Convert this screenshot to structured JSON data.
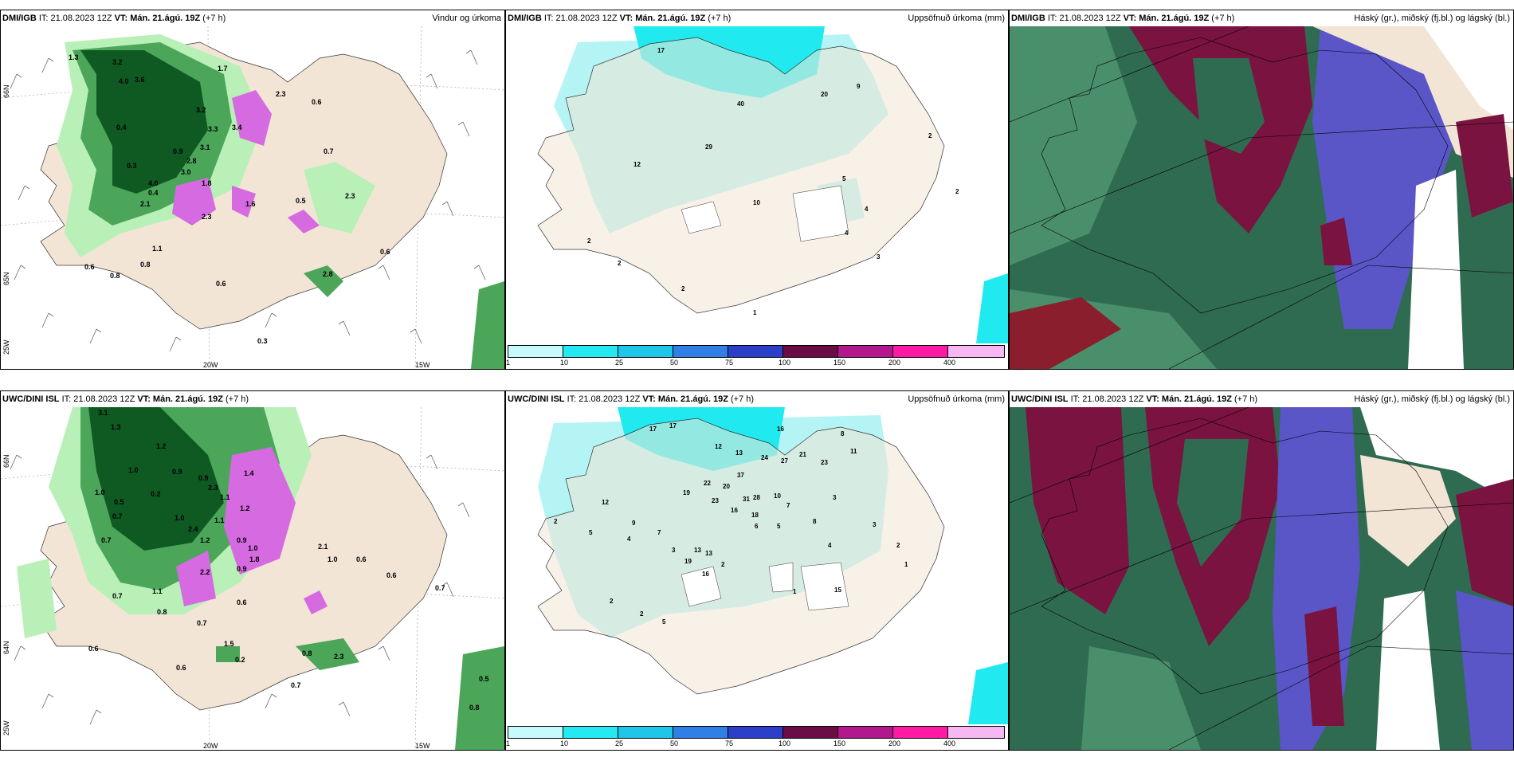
{
  "colors": {
    "land": "#f3e5d6",
    "sea": "#ffffff",
    "precip_light": "#b9f0b7",
    "precip_mid": "#4ca65a",
    "precip_dark": "#0f5a22",
    "snow": "#d66ae0",
    "acc_light": "#b4f4f4",
    "acc_cyan": "#20eaf0",
    "cloud_high": "#2f6b50",
    "cloud_mid": "#7a1340",
    "cloud_low": "#5a56c8"
  },
  "panels": [
    {
      "row": "top",
      "model": "DMI/IGB",
      "it": "IT: 21.08.2023 12Z",
      "vt_label": "VT:",
      "vt_value": "Mán. 21.ágú. 19Z",
      "lead": "(+7 h)",
      "wind_title": "Vindur og úrkoma",
      "acc_title": "Uppsöfnuð úrkoma (mm)",
      "cloud_title": "Háský (gr.), miðský (fj.bl.) og lágský (bl.)",
      "wind_labels": [
        "1.3",
        "3.2",
        "1.7",
        "4.0",
        "3.6",
        "0.6",
        "3.2",
        "2.3",
        "0.4",
        "3.3",
        "3.4",
        "0.9",
        "3.1",
        "2.8",
        "0.3",
        "3.0",
        "0.7",
        "4.0",
        "1.8",
        "0.4",
        "1.6",
        "2.1",
        "0.5",
        "2.3",
        "2.3",
        "1.1",
        "0.8",
        "0.6",
        "0.8",
        "0.6",
        "0.6",
        "2.8",
        "0.3"
      ],
      "acc_labels": [
        "17",
        "9",
        "20",
        "40",
        "29",
        "12",
        "2",
        "5",
        "10",
        "4",
        "2",
        "2",
        "3",
        "4",
        "2",
        "2",
        "1"
      ]
    },
    {
      "row": "bottom",
      "model": "UWC/DINI ISL",
      "it": "IT: 21.08.2023 12Z",
      "vt_label": "VT:",
      "vt_value": "Mán. 21.ágú. 19Z",
      "lead": "(+7 h)",
      "wind_title": "",
      "acc_title": "Uppsöfnuð úrkoma (mm)",
      "cloud_title": "Háský (gr.), miðský (fj.bl.) og lágský (bl.)",
      "wind_labels": [
        "3.1",
        "1.3",
        "1.2",
        "0.9",
        "1.0",
        "0.9",
        "1.4",
        "2.3",
        "1.1",
        "0.5",
        "1.0",
        "0.2",
        "1.2",
        "0.7",
        "1.0",
        "1.1",
        "2.4",
        "2.1",
        "0.9",
        "0.7",
        "1.0",
        "1.2",
        "1.0",
        "1.8",
        "2.2",
        "0.6",
        "0.9",
        "0.6",
        "1.1",
        "0.7",
        "0.7",
        "0.8",
        "0.6",
        "1.5",
        "0.2",
        "0.8",
        "2.3",
        "0.6",
        "0.7",
        "0.5",
        "0.8",
        "0.7",
        "0.6"
      ],
      "acc_labels": [
        "17",
        "17",
        "16",
        "8",
        "12",
        "13",
        "23",
        "11",
        "22",
        "20",
        "37",
        "24",
        "27",
        "21",
        "19",
        "23",
        "31",
        "28",
        "16",
        "18",
        "10",
        "7",
        "3",
        "12",
        "9",
        "7",
        "8",
        "6",
        "5",
        "4",
        "3",
        "2",
        "1",
        "2",
        "5",
        "4",
        "3",
        "2",
        "1",
        "2",
        "2",
        "5",
        "13",
        "13",
        "19",
        "16",
        "15"
      ]
    }
  ],
  "axes": {
    "lat_66": "66N",
    "lat_64": "64N",
    "lat_65": "65N",
    "lon_20w": "20W",
    "lon_15w": "15W",
    "lon_25w": "25W"
  },
  "colorbar": {
    "ticks": [
      "1",
      "10",
      "25",
      "50",
      "75",
      "100",
      "150",
      "200",
      "400"
    ],
    "colors": [
      "#c6fafc",
      "#25e9f2",
      "#1ec6ea",
      "#2f7fe4",
      "#2b3fc8",
      "#6b0c46",
      "#b2178d",
      "#ff1aa6",
      "#f6b7f2"
    ]
  }
}
